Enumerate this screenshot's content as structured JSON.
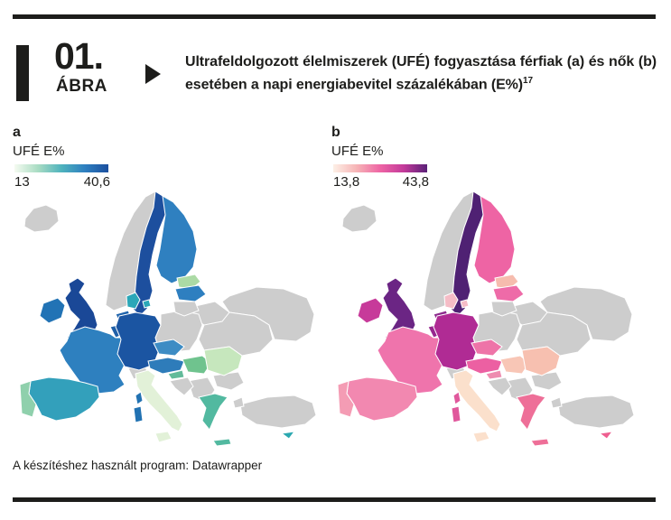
{
  "figure": {
    "number": "01.",
    "kicker": "ÁBRA",
    "title": "Ultrafeldolgozott élelmiszerek (UFÉ) fogyasztása férfiak (a) és nők (b) esetében a napi energiabevitel százalékában (E%)",
    "title_sup": "17"
  },
  "footer": {
    "text": "A készítéshez használt program: Datawrapper"
  },
  "colors": {
    "rule": "#1d1d1b",
    "neutral_country": "#cdcdcd",
    "sea": "#ffffff"
  },
  "chart_data": [
    {
      "type": "choropleth",
      "panel_label": "a",
      "group": "férfiak (a)",
      "legend_title": "UFÉ E%",
      "unit": "E%",
      "scale_min": 13,
      "scale_max": 40.6,
      "scale_min_label": "13",
      "scale_max_label": "40,6",
      "gradient_stops": [
        "#f5fbf1",
        "#a9dcc3",
        "#4fb3bd",
        "#2e7fc0",
        "#1b4f9e"
      ],
      "no_data_color": "#cdcdcd",
      "country_fill": {
        "iceland": "#cdcdcd",
        "norway": "#cdcdcd",
        "sweden": "#1d4f9e",
        "finland": "#2f80c0",
        "estonia": "#abdaa5",
        "latvia": "#2e7fc0",
        "lithuania": "#cdcdcd",
        "denmark": "#2ba7b8",
        "denmark_isles": "#2ba7b8",
        "uk": "#1a4897",
        "ireland": "#2273b5",
        "netherlands": "#1e63ac",
        "belgium": "#2060a8",
        "germany": "#1b55a2",
        "poland": "#cdcdcd",
        "czechia": "#3d8cc4",
        "austria": "#2e7cba",
        "switzerland": "#cdcdcd",
        "france": "#2e80bf",
        "corsica": "#2272b2",
        "sardinia": "#2272b2",
        "italy": "#e2f1d8",
        "sicily": "#e2f1d8",
        "spain": "#33a0bb",
        "portugal": "#8fd0ac",
        "hungary": "#6fc38e",
        "slovenia": "#62bb9a",
        "croatia": "#cdcdcd",
        "romania": "#c6e7bd",
        "balkans": "#cdcdcd",
        "bulgaria": "#cdcdcd",
        "greece": "#52b9a0",
        "crete": "#52b9a0",
        "ukraine": "#cdcdcd",
        "belarus": "#cdcdcd",
        "russia": "#cdcdcd",
        "turkey": "#cdcdcd",
        "thrace": "#cdcdcd",
        "cyprus": "#2ba8b0"
      }
    },
    {
      "type": "choropleth",
      "panel_label": "b",
      "group": "nők (b)",
      "legend_title": "UFÉ E%",
      "unit": "E%",
      "scale_min": 13.8,
      "scale_max": 43.8,
      "scale_min_label": "13,8",
      "scale_max_label": "43,8",
      "gradient_stops": [
        "#fdf0e6",
        "#f6b4b6",
        "#ee64a4",
        "#c33a9a",
        "#5a2178"
      ],
      "no_data_color": "#cdcdcd",
      "country_fill": {
        "iceland": "#cdcdcd",
        "norway": "#cdcdcd",
        "sweden": "#4f2173",
        "finland": "#ee64a4",
        "estonia": "#f6bcae",
        "latvia": "#ee6ba8",
        "lithuania": "#cdcdcd",
        "denmark": "#f5bcc6",
        "denmark_isles": "#f5bcc6",
        "uk": "#6b2584",
        "ireland": "#c73a9a",
        "netherlands": "#8d2c8e",
        "belgium": "#97278e",
        "germany": "#b02b94",
        "poland": "#cdcdcd",
        "czechia": "#ee74a8",
        "austria": "#ec60a2",
        "switzerland": "#cdcdcd",
        "france": "#ef74ac",
        "corsica": "#e0589c",
        "sardinia": "#e0589c",
        "italy": "#fbe0cc",
        "sicily": "#fbe0cc",
        "spain": "#f288b0",
        "portugal": "#f49cb4",
        "hungary": "#f8c6b6",
        "slovenia": "#ee8cb0",
        "croatia": "#cdcdcd",
        "romania": "#f7c0b0",
        "balkans": "#cdcdcd",
        "bulgaria": "#cdcdcd",
        "greece": "#ee6f98",
        "crete": "#ee6f98",
        "ukraine": "#cdcdcd",
        "belarus": "#cdcdcd",
        "russia": "#cdcdcd",
        "turkey": "#cdcdcd",
        "thrace": "#cdcdcd",
        "cyprus": "#ee5f90"
      }
    }
  ]
}
